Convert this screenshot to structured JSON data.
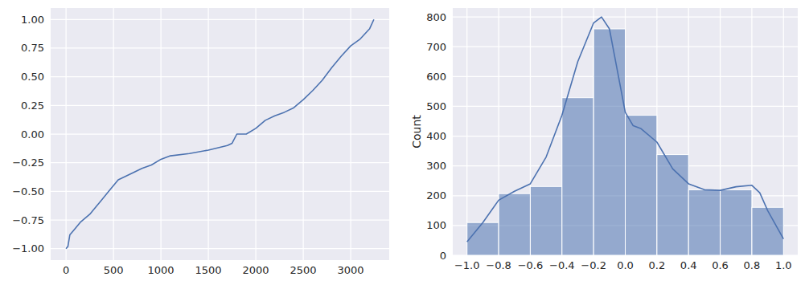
{
  "chart_data": [
    {
      "type": "line",
      "color": "#4c72b0",
      "grid": true,
      "x": [
        0,
        20,
        40,
        80,
        150,
        250,
        350,
        450,
        550,
        700,
        800,
        900,
        1000,
        1100,
        1300,
        1500,
        1700,
        1750,
        1800,
        1900,
        2000,
        2100,
        2200,
        2300,
        2400,
        2500,
        2600,
        2700,
        2800,
        2900,
        3000,
        3100,
        3200,
        3244
      ],
      "values": [
        -1.0,
        -0.98,
        -0.88,
        -0.84,
        -0.77,
        -0.7,
        -0.6,
        -0.5,
        -0.4,
        -0.34,
        -0.3,
        -0.27,
        -0.22,
        -0.19,
        -0.17,
        -0.14,
        -0.1,
        -0.08,
        0.0,
        0.0,
        0.05,
        0.12,
        0.16,
        0.19,
        0.23,
        0.3,
        0.38,
        0.47,
        0.58,
        0.68,
        0.77,
        0.83,
        0.92,
        1.0
      ],
      "xlim": [
        -162,
        3406
      ],
      "xticks": [
        0,
        500,
        1000,
        1500,
        2000,
        2500,
        3000
      ],
      "ylim": [
        -1.1,
        1.1
      ],
      "yticks": [
        {
          "value": -1,
          "label": "−1.00"
        },
        {
          "value": -0.75,
          "label": "−0.75"
        },
        {
          "value": -0.5,
          "label": "−0.50"
        },
        {
          "value": -0.25,
          "label": "−0.25"
        },
        {
          "value": 0,
          "label": "0.00"
        },
        {
          "value": 0.25,
          "label": "0.25"
        },
        {
          "value": 0.5,
          "label": "0.50"
        },
        {
          "value": 0.75,
          "label": "0.75"
        },
        {
          "value": 1,
          "label": "1.00"
        }
      ]
    },
    {
      "type": "histogram",
      "color": "#4c72b0",
      "grid": true,
      "y_label": "Count",
      "bins": [
        -1.0,
        -0.8,
        -0.6,
        -0.4,
        -0.2,
        0.0,
        0.2,
        0.4,
        0.6,
        0.8,
        1.0
      ],
      "values": [
        110,
        207,
        231,
        529,
        760,
        470,
        338,
        220,
        220,
        161
      ],
      "kde": {
        "x": [
          -1.0,
          -0.9,
          -0.8,
          -0.7,
          -0.6,
          -0.5,
          -0.4,
          -0.3,
          -0.2,
          -0.15,
          -0.1,
          -0.05,
          0.0,
          0.05,
          0.1,
          0.2,
          0.3,
          0.4,
          0.5,
          0.6,
          0.7,
          0.8,
          0.85,
          0.9,
          1.0
        ],
        "values": [
          45,
          110,
          185,
          215,
          240,
          330,
          470,
          650,
          780,
          800,
          760,
          620,
          480,
          435,
          425,
          380,
          290,
          240,
          220,
          218,
          230,
          235,
          210,
          150,
          55
        ]
      },
      "xlim": [
        -1.09,
        1.09
      ],
      "xticks": [
        {
          "value": -1,
          "label": "−1.0"
        },
        {
          "value": -0.8,
          "label": "−0.8"
        },
        {
          "value": -0.6,
          "label": "−0.6"
        },
        {
          "value": -0.4,
          "label": "−0.4"
        },
        {
          "value": -0.2,
          "label": "−0.2"
        },
        {
          "value": 0,
          "label": "0.0"
        },
        {
          "value": 0.2,
          "label": "0.2"
        },
        {
          "value": 0.4,
          "label": "0.4"
        },
        {
          "value": 0.6,
          "label": "0.6"
        },
        {
          "value": 0.8,
          "label": "0.8"
        },
        {
          "value": 1,
          "label": "1.0"
        }
      ],
      "ylim": [
        0,
        830
      ],
      "yticks": [
        0,
        100,
        200,
        300,
        400,
        500,
        600,
        700,
        800
      ]
    }
  ]
}
